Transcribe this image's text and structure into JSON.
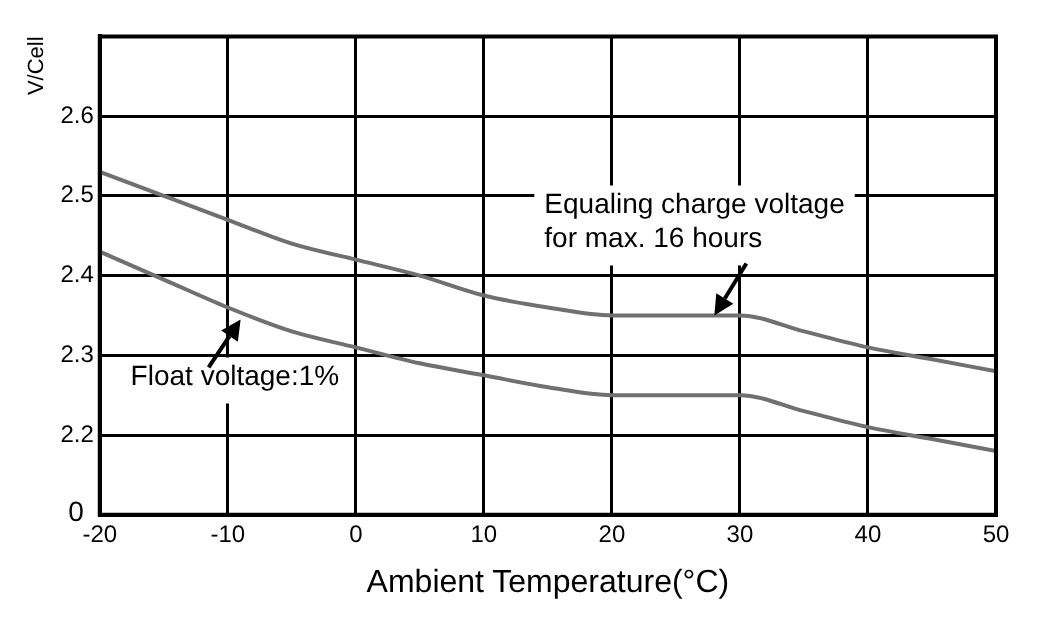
{
  "chart_data": {
    "type": "line",
    "xlabel": "Ambient Temperature(°C)",
    "ylabel": "V/Cell",
    "x": [
      -20,
      -15,
      -10,
      -5,
      0,
      5,
      10,
      15,
      20,
      30,
      35,
      40,
      45,
      50
    ],
    "series": [
      {
        "color": "#707070",
        "values": [
          2.53,
          2.5,
          2.47,
          2.44,
          2.42,
          2.4,
          2.375,
          2.36,
          2.35,
          2.35,
          2.33,
          2.31,
          2.295,
          2.28
        ]
      },
      {
        "color": "#707070",
        "values": [
          2.43,
          2.395,
          2.36,
          2.33,
          2.31,
          2.29,
          2.275,
          2.26,
          2.25,
          2.25,
          2.23,
          2.21,
          2.195,
          2.18
        ]
      }
    ],
    "xlim": [
      -20,
      50
    ],
    "xticks": [
      -20,
      -10,
      0,
      10,
      20,
      30,
      40,
      50
    ],
    "ylim": [
      2.1,
      2.7
    ],
    "yticks": [
      2.2,
      2.3,
      2.4,
      2.5,
      2.6
    ],
    "annotations": [
      "0",
      {
        "text": "Equaling charge voltage\nfor max. 16 hours",
        "x": 28,
        "y": 2.35
      },
      {
        "text": "Float voltage:1%",
        "x": -9,
        "y": 2.345
      }
    ],
    "grid": true,
    "legend": false,
    "marker": "none",
    "line_style": "solid"
  }
}
